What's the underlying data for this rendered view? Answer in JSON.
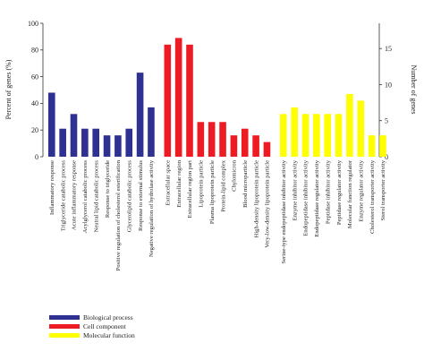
{
  "chart_data": {
    "type": "bar",
    "ylabel_left": "Percent of genes (%)",
    "ylabel_right": "Number of genes",
    "ylim_left": [
      0,
      100
    ],
    "ylim_right": [
      0,
      18.5
    ],
    "yticks_left": [
      "0",
      "20",
      "40",
      "60",
      "80",
      "100"
    ],
    "yticks_right": [
      "0",
      "5",
      "10",
      "15"
    ],
    "grid": false,
    "legend_position": "bottom-left",
    "groups": [
      {
        "name": "Biological process",
        "color": "#2e3192"
      },
      {
        "name": "Cell component",
        "color": "#ed1c24"
      },
      {
        "name": "Molecular function",
        "color": "#ffff00"
      }
    ],
    "bars": [
      {
        "category": "Inflammatory response",
        "group": 0,
        "value": 48
      },
      {
        "category": "Triglyceride catabolic process",
        "group": 0,
        "value": 21
      },
      {
        "category": "Acute inflammatory response",
        "group": 0,
        "value": 32
      },
      {
        "category": "Acylglycerol catabolic process",
        "group": 0,
        "value": 21
      },
      {
        "category": "Neutral lipid catabolic process",
        "group": 0,
        "value": 21
      },
      {
        "category": "Response to triglyceride",
        "group": 0,
        "value": 16
      },
      {
        "category": "Positive regulation of cholesterol esterification",
        "group": 0,
        "value": 16
      },
      {
        "category": "Glycerolipid catabolic process",
        "group": 0,
        "value": 21
      },
      {
        "category": "Response to external stimulus",
        "group": 0,
        "value": 63
      },
      {
        "category": "Negative regulation of hydrolase activity",
        "group": 0,
        "value": 37
      },
      {
        "category": "Extracellular space",
        "group": 1,
        "value": 84
      },
      {
        "category": "Extracellular region",
        "group": 1,
        "value": 89
      },
      {
        "category": "Extracellular region part",
        "group": 1,
        "value": 84
      },
      {
        "category": "Lipoprotein particle",
        "group": 1,
        "value": 26
      },
      {
        "category": "Plasma lipoprotein particle",
        "group": 1,
        "value": 26
      },
      {
        "category": "Protein-lipid complex",
        "group": 1,
        "value": 26
      },
      {
        "category": "Chylomicron",
        "group": 1,
        "value": 16
      },
      {
        "category": "Blood microparticle",
        "group": 1,
        "value": 21
      },
      {
        "category": "High-density lipoprotein particle",
        "group": 1,
        "value": 16
      },
      {
        "category": "Very-low-density lipoprotein particle",
        "group": 1,
        "value": 11
      },
      {
        "category": "Serine-type endopeptidase inhibitor activity",
        "group": 2,
        "value": 32
      },
      {
        "category": "Enzyme inhibitor activity",
        "group": 2,
        "value": 37
      },
      {
        "category": "Endopeptidase inhibitor activity",
        "group": 2,
        "value": 32
      },
      {
        "category": "Endopeptidase regulator activity",
        "group": 2,
        "value": 32
      },
      {
        "category": "Peptidase inhibitor activity",
        "group": 2,
        "value": 32
      },
      {
        "category": "Peptidase regulator activity",
        "group": 2,
        "value": 32
      },
      {
        "category": "Molecular function regulator",
        "group": 2,
        "value": 47
      },
      {
        "category": "Enzyme regulator activity",
        "group": 2,
        "value": 42
      },
      {
        "category": "Cholesterol transporter activity",
        "group": 2,
        "value": 16
      },
      {
        "category": "Sterol transporter activity",
        "group": 2,
        "value": 16
      }
    ]
  }
}
